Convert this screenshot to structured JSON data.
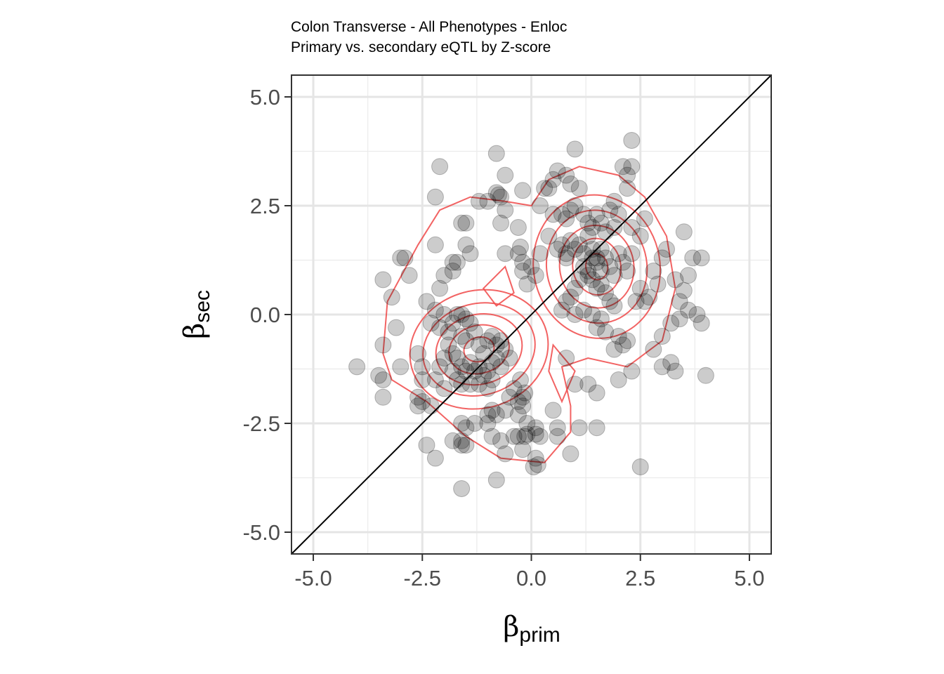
{
  "chart_data": {
    "type": "scatter",
    "title": "Colon Transverse - All Phenotypes - Enloc",
    "subtitle": "Primary vs. secondary eQTL by Z-score",
    "xlabel": {
      "symbol": "β",
      "subscript": "prim"
    },
    "ylabel": {
      "symbol": "β",
      "subscript": "sec"
    },
    "xlim": [
      -5.5,
      5.5
    ],
    "ylim": [
      -5.5,
      5.5
    ],
    "x_ticks": [
      -5.0,
      -2.5,
      0.0,
      2.5,
      5.0
    ],
    "y_ticks": [
      -5.0,
      -2.5,
      0.0,
      2.5,
      5.0
    ],
    "x_tick_labels": [
      "-5.0",
      "-2.5",
      "0.0",
      "2.5",
      "5.0"
    ],
    "y_tick_labels": [
      "-5.0",
      "-2.5",
      "0.0",
      "2.5",
      "5.0"
    ],
    "grid": true,
    "reference_line": "y = x",
    "point_color": "#000000",
    "contour_color": "#f04848",
    "density_peaks": [
      [
        -1.2,
        -0.8
      ],
      [
        1.5,
        1.1
      ]
    ],
    "points": [
      [
        -0.8,
        3.7
      ],
      [
        -2.1,
        3.4
      ],
      [
        -2.2,
        2.7
      ],
      [
        -1.6,
        2.1
      ],
      [
        -1.5,
        2.1
      ],
      [
        -1.2,
        2.6
      ],
      [
        -1.0,
        2.6
      ],
      [
        -0.8,
        2.8
      ],
      [
        -0.75,
        2.75
      ],
      [
        -0.7,
        2.7
      ],
      [
        -0.6,
        2.4
      ],
      [
        -0.7,
        2.1
      ],
      [
        -0.6,
        3.2
      ],
      [
        -0.2,
        2.85
      ],
      [
        -1.5,
        1.6
      ],
      [
        -1.4,
        1.4
      ],
      [
        -1.8,
        1.2
      ],
      [
        -1.7,
        1.2
      ],
      [
        -1.8,
        1.0
      ],
      [
        -2.2,
        1.6
      ],
      [
        -2.0,
        0.9
      ],
      [
        -2.1,
        0.6
      ],
      [
        -2.9,
        1.3
      ],
      [
        -3.0,
        1.3
      ],
      [
        -2.8,
        0.9
      ],
      [
        -3.4,
        0.8
      ],
      [
        -3.2,
        0.4
      ],
      [
        -2.4,
        0.3
      ],
      [
        -2.2,
        0.1
      ],
      [
        -3.1,
        -0.3
      ],
      [
        -3.4,
        -0.7
      ],
      [
        -3.5,
        -1.4
      ],
      [
        -3.4,
        -1.5
      ],
      [
        -3.4,
        -1.9
      ],
      [
        -4.0,
        -1.2
      ],
      [
        -3.0,
        -1.2
      ],
      [
        -2.6,
        -0.9
      ],
      [
        -2.5,
        -1.2
      ],
      [
        -2.5,
        -1.5
      ],
      [
        -2.6,
        -1.9
      ],
      [
        -2.5,
        -2.0
      ],
      [
        -2.6,
        -2.1
      ],
      [
        -2.3,
        -2.1
      ],
      [
        -2.3,
        -0.2
      ],
      [
        -2.1,
        -0.3
      ],
      [
        -2.0,
        0.0
      ],
      [
        -1.9,
        -0.4
      ],
      [
        -1.8,
        -0.2
      ],
      [
        -1.7,
        0.0
      ],
      [
        -1.6,
        0.0
      ],
      [
        -1.5,
        -0.1
      ],
      [
        -1.4,
        -0.2
      ],
      [
        -1.6,
        -0.5
      ],
      [
        -1.5,
        -0.6
      ],
      [
        -1.3,
        -0.4
      ],
      [
        -1.2,
        -0.7
      ],
      [
        -1.1,
        -0.9
      ],
      [
        -1.0,
        -0.6
      ],
      [
        -0.9,
        -0.5
      ],
      [
        -0.8,
        -0.7
      ],
      [
        -0.7,
        -0.6
      ],
      [
        -0.6,
        -0.8
      ],
      [
        -0.5,
        -1.0
      ],
      [
        -1.9,
        -0.7
      ],
      [
        -1.8,
        -0.9
      ],
      [
        -1.7,
        -1.0
      ],
      [
        -1.6,
        -1.2
      ],
      [
        -1.5,
        -1.3
      ],
      [
        -1.4,
        -1.1
      ],
      [
        -1.3,
        -1.3
      ],
      [
        -1.2,
        -1.2
      ],
      [
        -1.1,
        -1.4
      ],
      [
        -1.0,
        -1.3
      ],
      [
        -0.9,
        -1.1
      ],
      [
        -0.8,
        -1.0
      ],
      [
        -0.7,
        -1.2
      ],
      [
        -1.8,
        -1.3
      ],
      [
        -1.7,
        -1.5
      ],
      [
        -1.6,
        -1.6
      ],
      [
        -1.4,
        -1.6
      ],
      [
        -1.2,
        -1.6
      ],
      [
        -1.0,
        -1.7
      ],
      [
        -0.9,
        -1.5
      ],
      [
        -2.0,
        -1.0
      ],
      [
        -2.1,
        -1.2
      ],
      [
        -2.2,
        -1.5
      ],
      [
        -2.0,
        -1.7
      ],
      [
        -0.5,
        -1.9
      ],
      [
        -0.4,
        -1.7
      ],
      [
        -0.3,
        -2.0
      ],
      [
        -0.2,
        -1.9
      ],
      [
        -0.2,
        -2.1
      ],
      [
        -0.3,
        -2.3
      ],
      [
        -0.6,
        -2.2
      ],
      [
        -0.9,
        -2.2
      ],
      [
        -1.0,
        -2.3
      ],
      [
        -0.8,
        -2.3
      ],
      [
        -1.0,
        -2.5
      ],
      [
        -1.3,
        -2.5
      ],
      [
        -1.5,
        -2.6
      ],
      [
        -1.6,
        -3.0
      ],
      [
        -1.5,
        -3.0
      ],
      [
        -1.8,
        -2.9
      ],
      [
        -2.4,
        -3.0
      ],
      [
        -2.2,
        -3.3
      ],
      [
        -1.6,
        -2.5
      ],
      [
        -1.6,
        -2.9
      ],
      [
        -0.9,
        -2.8
      ],
      [
        -0.7,
        -2.9
      ],
      [
        -0.6,
        -3.2
      ],
      [
        -0.4,
        -2.8
      ],
      [
        -0.3,
        -2.8
      ],
      [
        -0.15,
        -2.8
      ],
      [
        -0.1,
        -2.5
      ],
      [
        -0.1,
        -2.75
      ],
      [
        0.1,
        -2.75
      ],
      [
        0.2,
        -2.8
      ],
      [
        0.1,
        -2.6
      ],
      [
        -0.2,
        -3.1
      ],
      [
        0.1,
        -3.3
      ],
      [
        0.15,
        -3.45
      ],
      [
        0.05,
        -3.5
      ],
      [
        0.5,
        -2.2
      ],
      [
        0.6,
        -2.6
      ],
      [
        0.6,
        -2.8
      ],
      [
        0.9,
        -3.2
      ],
      [
        -0.8,
        -3.8
      ],
      [
        -1.6,
        -4.0
      ],
      [
        1.1,
        -2.6
      ],
      [
        1.5,
        -2.6
      ],
      [
        -0.25,
        -1.5
      ],
      [
        -0.15,
        -1.8
      ],
      [
        0.8,
        -1.0
      ],
      [
        1.0,
        -1.6
      ],
      [
        1.3,
        -1.6
      ],
      [
        1.5,
        -1.8
      ],
      [
        2.0,
        -1.5
      ],
      [
        2.3,
        -1.3
      ],
      [
        2.5,
        -3.5
      ],
      [
        -0.6,
        1.4
      ],
      [
        -0.3,
        1.4
      ],
      [
        -0.2,
        1.0
      ],
      [
        -0.1,
        0.7
      ],
      [
        0.0,
        1.1
      ],
      [
        0.2,
        1.4
      ],
      [
        0.4,
        1.8
      ],
      [
        0.6,
        1.5
      ],
      [
        0.8,
        1.4
      ],
      [
        -0.3,
        2.0
      ],
      [
        -0.25,
        1.55
      ],
      [
        -0.2,
        1.2
      ],
      [
        0.1,
        0.9
      ],
      [
        0.2,
        2.5
      ],
      [
        0.3,
        2.9
      ],
      [
        0.4,
        2.9
      ],
      [
        0.5,
        3.1
      ],
      [
        0.6,
        3.3
      ],
      [
        0.8,
        3.2
      ],
      [
        0.9,
        3.0
      ],
      [
        1.0,
        2.5
      ],
      [
        1.1,
        2.9
      ],
      [
        1.0,
        3.8
      ],
      [
        0.7,
        2.3
      ],
      [
        0.8,
        2.2
      ],
      [
        0.5,
        2.3
      ],
      [
        0.9,
        2.4
      ],
      [
        1.2,
        2.3
      ],
      [
        1.3,
        2.1
      ],
      [
        1.4,
        2.0
      ],
      [
        1.5,
        2.3
      ],
      [
        1.6,
        2.1
      ],
      [
        1.7,
        1.9
      ],
      [
        1.8,
        2.4
      ],
      [
        1.9,
        2.0
      ],
      [
        2.0,
        2.3
      ],
      [
        1.9,
        2.6
      ],
      [
        2.1,
        3.4
      ],
      [
        2.3,
        3.4
      ],
      [
        2.2,
        3.2
      ],
      [
        2.3,
        4.0
      ],
      [
        2.2,
        2.9
      ],
      [
        0.7,
        1.6
      ],
      [
        0.8,
        1.3
      ],
      [
        0.9,
        1.7
      ],
      [
        1.0,
        1.5
      ],
      [
        1.1,
        1.6
      ],
      [
        1.2,
        1.4
      ],
      [
        1.3,
        1.8
      ],
      [
        1.4,
        1.5
      ],
      [
        1.5,
        1.2
      ],
      [
        1.6,
        1.0
      ],
      [
        1.7,
        1.3
      ],
      [
        1.8,
        1.1
      ],
      [
        1.9,
        0.9
      ],
      [
        2.0,
        1.4
      ],
      [
        2.1,
        1.2
      ],
      [
        2.2,
        1.0
      ],
      [
        2.3,
        1.4
      ],
      [
        1.2,
        1.1
      ],
      [
        1.3,
        0.9
      ],
      [
        1.4,
        0.8
      ],
      [
        1.5,
        0.6
      ],
      [
        1.6,
        0.7
      ],
      [
        1.7,
        0.5
      ],
      [
        1.8,
        0.3
      ],
      [
        1.9,
        0.2
      ],
      [
        1.1,
        0.8
      ],
      [
        1.0,
        0.6
      ],
      [
        0.9,
        0.4
      ],
      [
        0.8,
        0.3
      ],
      [
        0.7,
        0.1
      ],
      [
        1.0,
        0.0
      ],
      [
        1.2,
        0.1
      ],
      [
        1.4,
        0.0
      ],
      [
        1.5,
        -0.3
      ],
      [
        1.6,
        -0.1
      ],
      [
        1.7,
        -0.4
      ],
      [
        2.0,
        -0.5
      ],
      [
        2.1,
        -0.7
      ],
      [
        1.9,
        -0.8
      ],
      [
        2.2,
        -0.6
      ],
      [
        2.4,
        0.3
      ],
      [
        2.6,
        0.3
      ],
      [
        2.7,
        0.4
      ],
      [
        2.5,
        0.6
      ],
      [
        2.8,
        1.0
      ],
      [
        2.9,
        0.7
      ],
      [
        3.0,
        1.3
      ],
      [
        3.1,
        1.5
      ],
      [
        3.3,
        0.8
      ],
      [
        3.4,
        0.3
      ],
      [
        3.5,
        0.55
      ],
      [
        3.6,
        0.9
      ],
      [
        3.7,
        1.3
      ],
      [
        3.9,
        1.3
      ],
      [
        3.5,
        1.9
      ],
      [
        3.4,
        -0.1
      ],
      [
        3.6,
        0.1
      ],
      [
        3.8,
        0.0
      ],
      [
        3.9,
        -0.2
      ],
      [
        2.8,
        -0.8
      ],
      [
        3.0,
        -0.5
      ],
      [
        3.2,
        -0.2
      ],
      [
        3.0,
        -1.2
      ],
      [
        3.2,
        -1.1
      ],
      [
        3.3,
        -1.3
      ],
      [
        4.0,
        -1.4
      ],
      [
        2.5,
        1.8
      ],
      [
        2.6,
        2.2
      ],
      [
        2.3,
        2.0
      ],
      [
        1.3,
        1.0
      ],
      [
        1.5,
        1.3
      ],
      [
        1.6,
        1.5
      ],
      [
        1.4,
        1.3
      ]
    ]
  }
}
